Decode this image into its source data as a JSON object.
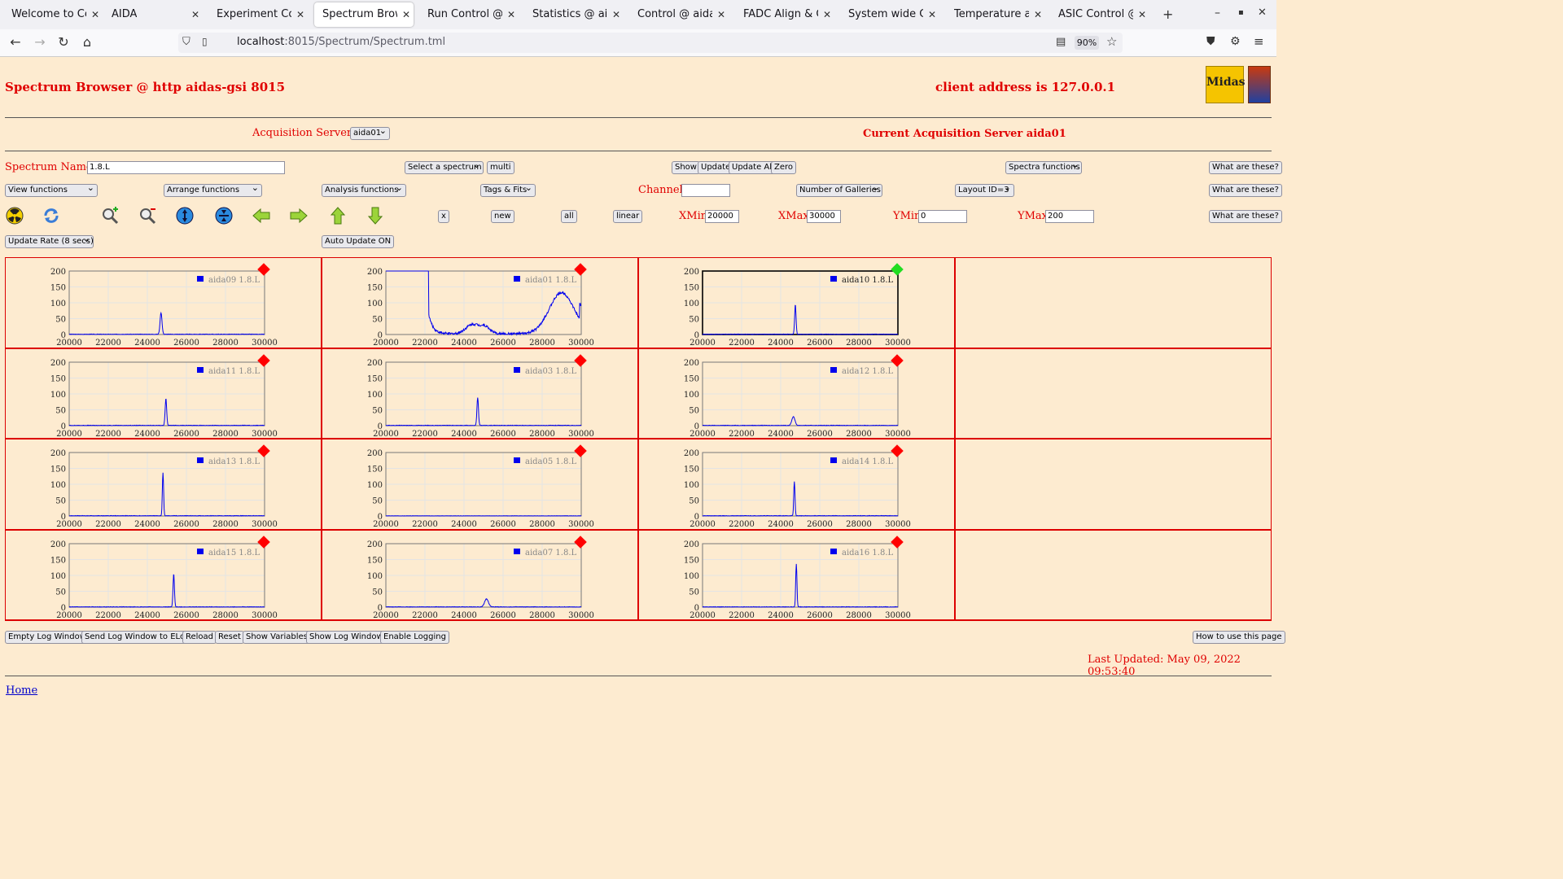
{
  "browser": {
    "tabs": [
      {
        "label": "Welcome to CentOS",
        "active": false
      },
      {
        "label": "AIDA",
        "active": false
      },
      {
        "label": "Experiment Control",
        "active": false
      },
      {
        "label": "Spectrum Browser",
        "active": true
      },
      {
        "label": "Run Control @ aida",
        "active": false
      },
      {
        "label": "Statistics @ aidas-g",
        "active": false
      },
      {
        "label": "Control @ aidas-gsi",
        "active": false
      },
      {
        "label": "FADC Align & Cont",
        "active": false
      },
      {
        "label": "System wide Check",
        "active": false
      },
      {
        "label": "Temperature and st",
        "active": false
      },
      {
        "label": "ASIC Control @ aida",
        "active": false
      }
    ],
    "url_host": "localhost",
    "url_path": ":8015/Spectrum/Spectrum.tml",
    "zoom": "90%"
  },
  "header": {
    "title": "Spectrum Browser @ http aidas-gsi 8015",
    "client": "client address is 127.0.0.1",
    "logo_text": "Midas",
    "acq_label": "Acquisition Servers",
    "acq_value": "aida01",
    "current_server": "Current Acquisition Server aida01"
  },
  "controls": {
    "spectrum_name_label": "Spectrum Name:",
    "spectrum_name_value": "1.8.L",
    "select_spectrum": "Select a spectrum",
    "multi": "multi",
    "show": "Show",
    "update": "Update",
    "update_all": "Update All",
    "zero": "Zero",
    "spectra_functions": "Spectra functions",
    "what_are_these": "What are these?",
    "view_functions": "View functions",
    "arrange_functions": "Arrange functions",
    "analysis_functions": "Analysis functions",
    "tags_fits": "Tags & Fits",
    "channel_label": "Channel:",
    "channel_value": "",
    "galleries": "Number of Galleries",
    "layout": "Layout ID=3",
    "x_btn": "x",
    "new_btn": "new",
    "all_btn": "all",
    "linear_btn": "linear",
    "xmin_label": "XMin",
    "xmin_value": "20000",
    "xmax_label": "XMax",
    "xmax_value": "30000",
    "ymin_label": "YMin",
    "ymin_value": "0",
    "ymax_label": "YMax",
    "ymax_value": "200",
    "update_rate": "Update Rate (8 secs)",
    "auto_update": "Auto Update ON"
  },
  "colors": {
    "background": "#fdebd0",
    "accent_red": "#e00000",
    "trace_blue": "#0000ee",
    "marker_red": "#ff0000",
    "marker_green": "#22dd22"
  },
  "chart_data": [
    {
      "type": "line",
      "legend": "aida09 1.8.L",
      "xlim": [
        20000,
        30000
      ],
      "ylim": [
        0,
        200
      ],
      "x_ticks": [
        "20000",
        "22000",
        "24000",
        "26000",
        "28000",
        "30000"
      ],
      "y_ticks": [
        "0",
        "50",
        "100",
        "150",
        "200"
      ],
      "peak_x": 24700,
      "peak_y": 68,
      "peak_width": 70,
      "selected": false
    },
    {
      "type": "line",
      "legend": "aida01 1.8.L",
      "xlim": [
        20000,
        30000
      ],
      "ylim": [
        0,
        200
      ],
      "x_ticks": [
        "20000",
        "22000",
        "24000",
        "26000",
        "28000",
        "30000"
      ],
      "y_ticks": [
        "0",
        "50",
        "100",
        "150",
        "200"
      ],
      "broad": true,
      "selected": false
    },
    {
      "type": "line",
      "legend": "aida10 1.8.L",
      "xlim": [
        20000,
        30000
      ],
      "ylim": [
        0,
        200
      ],
      "x_ticks": [
        "20000",
        "22000",
        "24000",
        "26000",
        "28000",
        "30000"
      ],
      "y_ticks": [
        "0",
        "50",
        "100",
        "150",
        "200"
      ],
      "peak_x": 24750,
      "peak_y": 95,
      "peak_width": 50,
      "selected": true
    },
    {
      "type": "line",
      "legend": "aida11 1.8.L",
      "xlim": [
        20000,
        30000
      ],
      "ylim": [
        0,
        200
      ],
      "x_ticks": [
        "20000",
        "22000",
        "24000",
        "26000",
        "28000",
        "30000"
      ],
      "y_ticks": [
        "0",
        "50",
        "100",
        "150",
        "200"
      ],
      "peak_x": 24950,
      "peak_y": 85,
      "peak_width": 55,
      "selected": false
    },
    {
      "type": "line",
      "legend": "aida03 1.8.L",
      "xlim": [
        20000,
        30000
      ],
      "ylim": [
        0,
        200
      ],
      "x_ticks": [
        "20000",
        "22000",
        "24000",
        "26000",
        "28000",
        "30000"
      ],
      "y_ticks": [
        "0",
        "50",
        "100",
        "150",
        "200"
      ],
      "peak_x": 24700,
      "peak_y": 87,
      "peak_width": 55,
      "selected": false
    },
    {
      "type": "line",
      "legend": "aida12 1.8.L",
      "xlim": [
        20000,
        30000
      ],
      "ylim": [
        0,
        200
      ],
      "x_ticks": [
        "20000",
        "22000",
        "24000",
        "26000",
        "28000",
        "30000"
      ],
      "y_ticks": [
        "0",
        "50",
        "100",
        "150",
        "200"
      ],
      "peak_x": 24650,
      "peak_y": 28,
      "peak_width": 110,
      "selected": false
    },
    {
      "type": "line",
      "legend": "aida13 1.8.L",
      "xlim": [
        20000,
        30000
      ],
      "ylim": [
        0,
        200
      ],
      "x_ticks": [
        "20000",
        "22000",
        "24000",
        "26000",
        "28000",
        "30000"
      ],
      "y_ticks": [
        "0",
        "50",
        "100",
        "150",
        "200"
      ],
      "peak_x": 24800,
      "peak_y": 135,
      "peak_width": 45,
      "selected": false
    },
    {
      "type": "line",
      "legend": "aida05 1.8.L",
      "xlim": [
        20000,
        30000
      ],
      "ylim": [
        0,
        200
      ],
      "x_ticks": [
        "20000",
        "22000",
        "24000",
        "26000",
        "28000",
        "30000"
      ],
      "y_ticks": [
        "0",
        "50",
        "100",
        "150",
        "200"
      ],
      "empty": true,
      "selected": false
    },
    {
      "type": "line",
      "legend": "aida14 1.8.L",
      "xlim": [
        20000,
        30000
      ],
      "ylim": [
        0,
        200
      ],
      "x_ticks": [
        "20000",
        "22000",
        "24000",
        "26000",
        "28000",
        "30000"
      ],
      "y_ticks": [
        "0",
        "50",
        "100",
        "150",
        "200"
      ],
      "peak_x": 24700,
      "peak_y": 108,
      "peak_width": 45,
      "selected": false
    },
    {
      "type": "line",
      "legend": "aida15 1.8.L",
      "xlim": [
        20000,
        30000
      ],
      "ylim": [
        0,
        200
      ],
      "x_ticks": [
        "20000",
        "22000",
        "24000",
        "26000",
        "28000",
        "30000"
      ],
      "y_ticks": [
        "0",
        "50",
        "100",
        "150",
        "200"
      ],
      "peak_x": 25350,
      "peak_y": 105,
      "peak_width": 50,
      "selected": false
    },
    {
      "type": "line",
      "legend": "aida07 1.8.L",
      "xlim": [
        20000,
        30000
      ],
      "ylim": [
        0,
        200
      ],
      "x_ticks": [
        "20000",
        "22000",
        "24000",
        "26000",
        "28000",
        "30000"
      ],
      "y_ticks": [
        "0",
        "50",
        "100",
        "150",
        "200"
      ],
      "peak_x": 25150,
      "peak_y": 25,
      "peak_width": 140,
      "selected": false
    },
    {
      "type": "line",
      "legend": "aida16 1.8.L",
      "xlim": [
        20000,
        30000
      ],
      "ylim": [
        0,
        200
      ],
      "x_ticks": [
        "20000",
        "22000",
        "24000",
        "26000",
        "28000",
        "30000"
      ],
      "y_ticks": [
        "0",
        "50",
        "100",
        "150",
        "200"
      ],
      "peak_x": 24800,
      "peak_y": 135,
      "peak_width": 45,
      "selected": false
    }
  ],
  "footer": {
    "buttons": [
      "Empty Log Window",
      "Send Log Window to ELog",
      "Reload",
      "Reset",
      "Show Variables",
      "Show Log Window",
      "Enable Logging"
    ],
    "how_to": "How to use this page",
    "last_updated": "Last Updated: May 09, 2022 09:53:40",
    "home": "Home"
  }
}
